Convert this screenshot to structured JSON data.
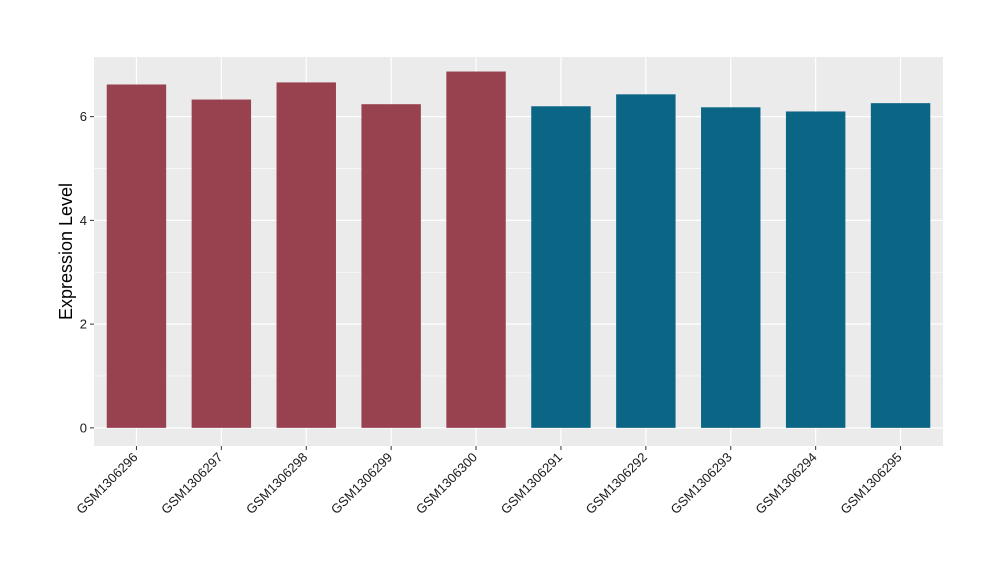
{
  "chart_data": {
    "type": "bar",
    "title": "",
    "xlabel": "",
    "ylabel": "Expression Level",
    "categories": [
      "GSM1306296",
      "GSM1306297",
      "GSM1306298",
      "GSM1306299",
      "GSM1306300",
      "GSM1306291",
      "GSM1306292",
      "GSM1306293",
      "GSM1306294",
      "GSM1306295"
    ],
    "values": [
      6.62,
      6.33,
      6.66,
      6.24,
      6.87,
      6.2,
      6.43,
      6.18,
      6.1,
      6.26
    ],
    "bar_colors": [
      "#99424f",
      "#99424f",
      "#99424f",
      "#99424f",
      "#99424f",
      "#0b6584",
      "#0b6584",
      "#0b6584",
      "#0b6584",
      "#0b6584"
    ],
    "ylim": [
      -0.35,
      7.15
    ],
    "yticks": [
      0,
      2,
      4,
      6
    ],
    "grid": true,
    "legend": "none",
    "panel_background": "#ebebeb",
    "gridline_color": "#ffffff"
  }
}
